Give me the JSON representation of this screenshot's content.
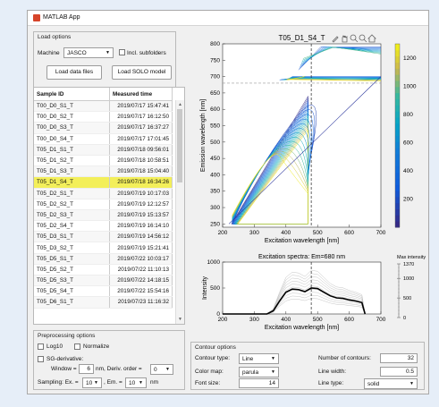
{
  "app": {
    "title": "MATLAB App"
  },
  "load_options": {
    "title": "Load options",
    "machine_label": "Machine",
    "machine_value": "JASCO",
    "incl_subfolders_label": "Incl. subfolders",
    "load_data_button": "Load data files",
    "load_solo_button": "Load SOLO model"
  },
  "table": {
    "headers": [
      "Sample ID",
      "Measured time"
    ],
    "rows": [
      [
        "T00_D0_S1_T",
        "2019/07/17 15:47:41"
      ],
      [
        "T00_D0_S2_T",
        "2019/07/17 16:12:50"
      ],
      [
        "T00_D0_S3_T",
        "2019/07/17 16:37:27"
      ],
      [
        "T00_D0_S4_T",
        "2019/07/17 17:01:45"
      ],
      [
        "T05_D1_S1_T",
        "2019/07/18 09:56:01"
      ],
      [
        "T05_D1_S2_T",
        "2019/07/18 10:58:51"
      ],
      [
        "T05_D1_S3_T",
        "2019/07/18 15:04:40"
      ],
      [
        "T05_D1_S4_T",
        "2019/07/18 16:34:26"
      ],
      [
        "T05_D2_S1_T",
        "2019/07/19 10:17:03"
      ],
      [
        "T05_D2_S2_T",
        "2019/07/19 12:12:57"
      ],
      [
        "T05_D2_S3_T",
        "2019/07/19 15:13:57"
      ],
      [
        "T05_D2_S4_T",
        "2019/07/19 16:14:10"
      ],
      [
        "T05_D3_S1_T",
        "2019/07/19 14:56:12"
      ],
      [
        "T05_D3_S2_T",
        "2019/07/19 15:21:41"
      ],
      [
        "T05_D5_S1_T",
        "2019/07/22 10:03:17"
      ],
      [
        "T05_D5_S2_T",
        "2019/07/22 11:10:13"
      ],
      [
        "T05_D5_S3_T",
        "2019/07/22 14:18:15"
      ],
      [
        "T05_D5_S4_T",
        "2019/07/22 15:54:16"
      ],
      [
        "T05_D6_S1_T",
        "2019/07/23 11:16:32"
      ]
    ],
    "selected_index": 7
  },
  "preprocessing": {
    "title": "Preprocessing options",
    "log10_label": "Log10",
    "normalize_label": "Normalize",
    "sg_label": "SG-derivative:",
    "window_label": "Window =",
    "window_value": "6",
    "nm_label": "nm, Deriv. order =",
    "deriv_value": "0",
    "sampling_label": "Sampling: Ex. =",
    "ex_value": "10",
    "em_label": ", Em. =",
    "em_value": "10",
    "nm2_label": "nm"
  },
  "contour_options": {
    "title": "Contour options",
    "contour_type_label": "Contour type:",
    "contour_type_value": "Line",
    "color_map_label": "Color map:",
    "color_map_value": "parula",
    "font_size_label": "Font size:",
    "font_size_value": "14",
    "num_contours_label": "Number of contours:",
    "num_contours_value": "32",
    "line_width_label": "Line width:",
    "line_width_value": "0.5",
    "line_type_label": "Line type:",
    "line_type_value": "solid"
  },
  "chart_data": [
    {
      "type": "heatmap",
      "title": "T05_D1_S4_T",
      "xlabel": "Excitation wavelength [nm]",
      "ylabel": "Emission wavelength [nm]",
      "xlim": [
        200,
        700
      ],
      "ylim": [
        240,
        800
      ],
      "xticks": [
        200,
        300,
        400,
        500,
        600,
        700
      ],
      "yticks": [
        250,
        300,
        350,
        400,
        450,
        500,
        550,
        600,
        650,
        700,
        750,
        800
      ],
      "colorbar_ticks": [
        200,
        400,
        600,
        800,
        1000,
        1200
      ],
      "colorbar_range": [
        0,
        1300
      ],
      "colormap": "parula",
      "crosshair": {
        "excitation": 480,
        "emission": 680
      }
    },
    {
      "type": "line",
      "title": "Excitation spectra: Em=680 nm",
      "xlabel": "Excitation wavelength [nm]",
      "ylabel": "Intensity",
      "xlim": [
        200,
        700
      ],
      "ylim": [
        0,
        1000
      ],
      "xticks": [
        200,
        300,
        400,
        500,
        600,
        700
      ],
      "yticks": [
        0,
        500,
        1000
      ],
      "marker_x": 480,
      "max_intensity_label": "Max intensity",
      "max_intensity_ticks": [
        0,
        500,
        1000,
        1370
      ],
      "highlight_series": {
        "x": [
          200,
          340,
          360,
          380,
          400,
          420,
          440,
          460,
          480,
          500,
          520,
          540,
          560,
          580,
          600,
          620,
          640,
          650
        ],
        "y": [
          0,
          0,
          60,
          250,
          420,
          480,
          470,
          430,
          500,
          490,
          420,
          350,
          310,
          300,
          270,
          250,
          220,
          0
        ]
      }
    }
  ]
}
